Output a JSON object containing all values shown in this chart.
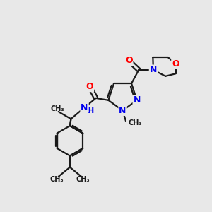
{
  "bg_color": "#e8e8e8",
  "bond_color": "#1a1a1a",
  "N_color": "#0000ee",
  "O_color": "#ff0000",
  "line_width": 1.6,
  "figsize": [
    3.0,
    3.0
  ],
  "dpi": 100,
  "xlim": [
    0,
    10
  ],
  "ylim": [
    0,
    10
  ]
}
